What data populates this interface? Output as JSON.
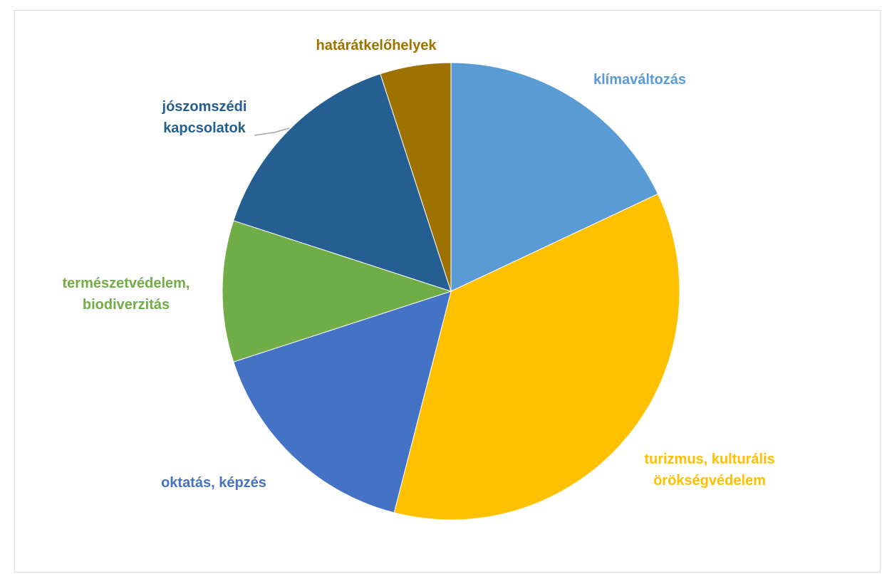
{
  "chart_data": {
    "type": "pie",
    "title": "",
    "start_angle_deg": 0,
    "direction": "clockwise",
    "slices": [
      {
        "label": [
          "klímaváltozás"
        ],
        "value": 18,
        "color": "#5b9bd5"
      },
      {
        "label": [
          "turizmus, kulturális",
          "örökségvédelem"
        ],
        "value": 36,
        "color": "#ffc000"
      },
      {
        "label": [
          "oktatás, képzés"
        ],
        "value": 16,
        "color": "#4472c4"
      },
      {
        "label": [
          "természetvédelem,",
          "biodiverzitás"
        ],
        "value": 10,
        "color": "#70ad47"
      },
      {
        "label": [
          "jószomszédi",
          "kapcsolatok"
        ],
        "value": 15,
        "color": "#255e91"
      },
      {
        "label": [
          "határátkelőhelyek"
        ],
        "value": 5,
        "color": "#9e7200"
      }
    ]
  }
}
